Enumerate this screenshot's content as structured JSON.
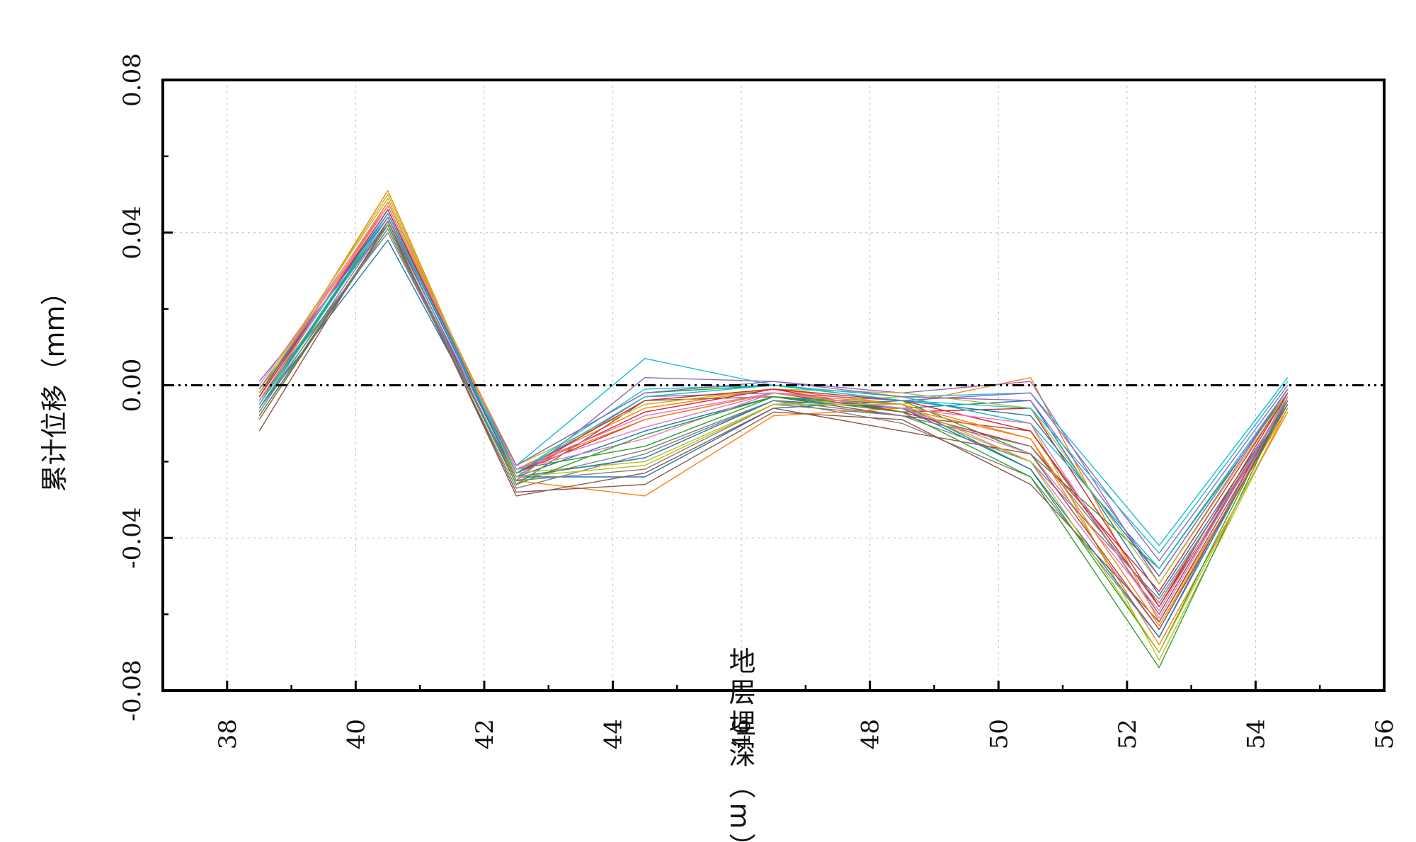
{
  "chart_data": {
    "type": "line",
    "title": "",
    "xlabel": "地层埋深（m）",
    "ylabel": "累计位移（mm）",
    "xlim": [
      37,
      56
    ],
    "ylim": [
      -0.08,
      0.08
    ],
    "x_ticks": [
      38,
      40,
      42,
      44,
      46,
      48,
      50,
      52,
      54,
      56
    ],
    "x_tick_labels": [
      "38",
      "40",
      "42",
      "44",
      "46",
      "48",
      "50",
      "52",
      "54",
      "56"
    ],
    "y_ticks": [
      -0.08,
      -0.04,
      0.0,
      0.04,
      0.08
    ],
    "y_tick_labels": [
      "-0.08",
      "-0.04",
      "0.00",
      "0.04",
      "0.08"
    ],
    "grid": true,
    "legend": "none",
    "reference_line": {
      "y": 0.0,
      "style": "dash-dot",
      "color": "#000000"
    },
    "x": [
      38.5,
      40.5,
      42.5,
      44.5,
      46.5,
      48.5,
      50.5,
      52.5,
      54.5
    ],
    "series": [
      {
        "color": "#1f77b4",
        "values": [
          -0.004,
          0.043,
          -0.024,
          -0.012,
          -0.003,
          -0.006,
          -0.004,
          -0.055,
          -0.004
        ]
      },
      {
        "color": "#ff7f0e",
        "values": [
          -0.002,
          0.047,
          -0.022,
          -0.006,
          -0.001,
          -0.005,
          0.002,
          -0.062,
          -0.006
        ]
      },
      {
        "color": "#2ca02c",
        "values": [
          -0.006,
          0.045,
          -0.021,
          -0.002,
          0.0,
          -0.004,
          -0.018,
          -0.048,
          -0.002
        ]
      },
      {
        "color": "#d62728",
        "values": [
          -0.003,
          0.046,
          -0.023,
          -0.009,
          -0.002,
          -0.007,
          -0.006,
          -0.058,
          -0.005
        ]
      },
      {
        "color": "#9467bd",
        "values": [
          0.001,
          0.042,
          -0.025,
          0.002,
          0.001,
          -0.002,
          0.001,
          -0.052,
          -0.001
        ]
      },
      {
        "color": "#8c564b",
        "values": [
          -0.005,
          0.044,
          -0.026,
          -0.004,
          -0.003,
          -0.008,
          -0.012,
          -0.06,
          -0.003
        ]
      },
      {
        "color": "#e377c2",
        "values": [
          -0.002,
          0.048,
          -0.022,
          -0.014,
          -0.002,
          -0.006,
          -0.02,
          -0.064,
          -0.004
        ]
      },
      {
        "color": "#7f7f7f",
        "values": [
          -0.008,
          0.041,
          -0.027,
          -0.018,
          -0.004,
          -0.01,
          -0.024,
          -0.066,
          -0.002
        ]
      },
      {
        "color": "#bcbd22",
        "values": [
          -0.001,
          0.049,
          -0.023,
          -0.02,
          -0.005,
          -0.003,
          -0.01,
          -0.072,
          -0.006
        ]
      },
      {
        "color": "#17becf",
        "values": [
          -0.004,
          0.046,
          -0.021,
          0.007,
          0.0,
          -0.003,
          -0.002,
          -0.042,
          0.002
        ]
      },
      {
        "color": "#1f77b4",
        "values": [
          -0.006,
          0.038,
          -0.024,
          -0.024,
          -0.006,
          -0.004,
          -0.008,
          -0.05,
          -0.001
        ]
      },
      {
        "color": "#ff7f0e",
        "values": [
          -0.003,
          0.051,
          -0.025,
          -0.029,
          -0.008,
          -0.006,
          -0.014,
          -0.068,
          -0.007
        ]
      },
      {
        "color": "#2ca02c",
        "values": [
          -0.005,
          0.044,
          -0.022,
          -0.016,
          -0.003,
          -0.005,
          -0.022,
          -0.07,
          -0.003
        ]
      },
      {
        "color": "#d62728",
        "values": [
          -0.002,
          0.045,
          -0.023,
          -0.007,
          -0.001,
          -0.007,
          -0.016,
          -0.054,
          -0.002
        ]
      },
      {
        "color": "#9467bd",
        "values": [
          -0.007,
          0.043,
          -0.024,
          -0.003,
          -0.002,
          -0.004,
          -0.002,
          -0.046,
          0.0
        ]
      },
      {
        "color": "#8c564b",
        "values": [
          -0.009,
          0.042,
          -0.028,
          -0.026,
          -0.007,
          -0.009,
          -0.026,
          -0.062,
          -0.004
        ]
      },
      {
        "color": "#e377c2",
        "values": [
          0.0,
          0.047,
          -0.022,
          -0.011,
          -0.002,
          -0.006,
          -0.018,
          -0.059,
          -0.003
        ]
      },
      {
        "color": "#7f7f7f",
        "values": [
          -0.004,
          0.04,
          -0.025,
          -0.022,
          -0.005,
          -0.008,
          -0.02,
          -0.056,
          -0.005
        ]
      },
      {
        "color": "#bcbd22",
        "values": [
          -0.003,
          0.046,
          -0.021,
          -0.005,
          -0.001,
          -0.002,
          -0.006,
          -0.052,
          -0.002
        ]
      },
      {
        "color": "#17becf",
        "values": [
          -0.006,
          0.044,
          -0.023,
          -0.001,
          0.0,
          -0.003,
          -0.01,
          -0.048,
          -0.001
        ]
      },
      {
        "color": "#1f77b4",
        "values": [
          -0.002,
          0.045,
          -0.024,
          -0.019,
          -0.004,
          -0.006,
          -0.022,
          -0.066,
          -0.004
        ]
      },
      {
        "color": "#ff7f0e",
        "values": [
          -0.005,
          0.048,
          -0.022,
          -0.009,
          -0.002,
          -0.005,
          -0.014,
          -0.063,
          -0.006
        ]
      },
      {
        "color": "#2ca02c",
        "values": [
          -0.008,
          0.042,
          -0.026,
          -0.013,
          -0.003,
          -0.007,
          -0.024,
          -0.074,
          -0.003
        ]
      },
      {
        "color": "#d62728",
        "values": [
          -0.003,
          0.046,
          -0.023,
          -0.004,
          -0.001,
          -0.004,
          -0.012,
          -0.058,
          -0.002
        ]
      },
      {
        "color": "#9467bd",
        "values": [
          -0.001,
          0.044,
          -0.021,
          -0.002,
          0.001,
          -0.003,
          -0.004,
          -0.05,
          -0.001
        ]
      },
      {
        "color": "#8c564b",
        "values": [
          -0.012,
          0.043,
          -0.029,
          -0.023,
          -0.006,
          -0.012,
          -0.018,
          -0.064,
          -0.005
        ]
      },
      {
        "color": "#e377c2",
        "values": [
          -0.004,
          0.047,
          -0.022,
          -0.008,
          -0.002,
          -0.006,
          -0.01,
          -0.061,
          -0.003
        ]
      },
      {
        "color": "#7f7f7f",
        "values": [
          -0.006,
          0.041,
          -0.025,
          -0.017,
          -0.004,
          -0.008,
          -0.016,
          -0.057,
          -0.004
        ]
      },
      {
        "color": "#bcbd22",
        "values": [
          -0.002,
          0.05,
          -0.024,
          -0.021,
          -0.005,
          -0.005,
          -0.02,
          -0.07,
          -0.006
        ]
      },
      {
        "color": "#17becf",
        "values": [
          -0.005,
          0.045,
          -0.023,
          -0.003,
          0.0,
          -0.004,
          -0.006,
          -0.044,
          0.001
        ]
      }
    ]
  }
}
